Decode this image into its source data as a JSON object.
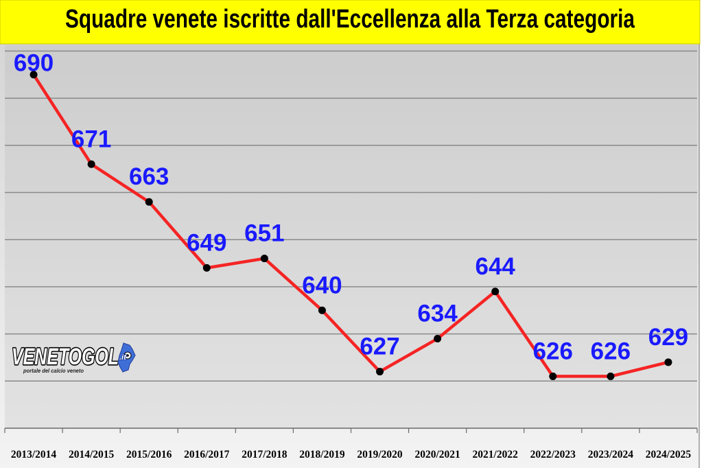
{
  "colors": {
    "title_background": "#ffff00",
    "line": "#f52424",
    "markers": "#000000",
    "data_labels": "#1a1aff",
    "logo_region": "#3f6fd6"
  },
  "logo": {
    "text": "VENETOGOL",
    "suffix": ".it",
    "tagline": "portale del calcio veneto"
  },
  "chart_data": {
    "type": "line",
    "title": "Squadre venete iscritte dall'Eccellenza alla Terza categoria",
    "categories": [
      "2013/2014",
      "2014/2015",
      "2015/2016",
      "2016/2017",
      "2017/2018",
      "2018/2019",
      "2019/2020",
      "2020/2021",
      "2021/2022",
      "2022/2023",
      "2023/2024",
      "2024/2025"
    ],
    "series": [
      {
        "values": [
          690,
          671,
          663,
          649,
          651,
          640,
          627,
          634,
          644,
          626,
          626,
          629
        ]
      }
    ],
    "data_labels": true,
    "markers": "circle",
    "ylim": [
      615,
      695
    ],
    "y_grid_step": 10,
    "y_tick_labels": false,
    "grid": true,
    "legend": "none"
  }
}
